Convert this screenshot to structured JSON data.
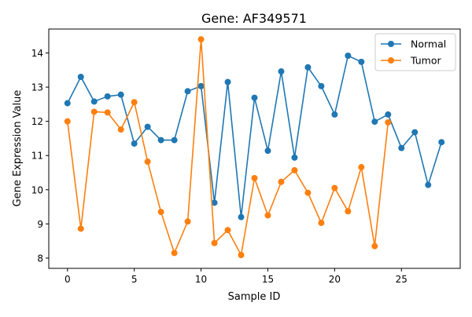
{
  "chart_data": {
    "type": "line",
    "title": "Gene: AF349571",
    "xlabel": "Sample ID",
    "ylabel": "Gene Expression Value",
    "xlim": [
      -1.4,
      29.4
    ],
    "ylim": [
      7.7,
      14.7
    ],
    "xticks": [
      0,
      5,
      10,
      15,
      20,
      25
    ],
    "yticks": [
      8,
      9,
      10,
      11,
      12,
      13,
      14
    ],
    "grid": false,
    "legend_position": "top-right",
    "series": [
      {
        "name": "Normal",
        "color": "#1f77b4",
        "marker": "circle",
        "x": [
          0,
          1,
          2,
          3,
          4,
          5,
          6,
          7,
          8,
          9,
          10,
          11,
          12,
          13,
          14,
          15,
          16,
          17,
          18,
          19,
          20,
          21,
          22,
          23,
          24,
          25,
          26,
          27,
          28
        ],
        "y": [
          12.53,
          13.3,
          12.58,
          12.73,
          12.78,
          11.35,
          11.84,
          11.45,
          11.45,
          12.88,
          13.03,
          9.62,
          13.15,
          9.2,
          12.69,
          11.14,
          13.46,
          10.94,
          13.58,
          13.03,
          12.2,
          13.92,
          13.74,
          11.99,
          12.2,
          11.22,
          11.68,
          10.14,
          11.39
        ]
      },
      {
        "name": "Tumor",
        "color": "#ff7f0e",
        "marker": "circle",
        "x": [
          0,
          1,
          2,
          3,
          4,
          5,
          6,
          7,
          8,
          9,
          10,
          11,
          12,
          13,
          14,
          15,
          16,
          17,
          18,
          19,
          20,
          21,
          22,
          23,
          24
        ],
        "y": [
          12.0,
          8.86,
          12.28,
          12.26,
          11.76,
          12.56,
          10.82,
          9.35,
          8.15,
          9.07,
          14.4,
          8.44,
          8.82,
          8.09,
          10.34,
          9.25,
          10.23,
          10.57,
          9.91,
          9.03,
          10.05,
          9.37,
          10.66,
          8.35,
          11.97
        ]
      }
    ]
  }
}
